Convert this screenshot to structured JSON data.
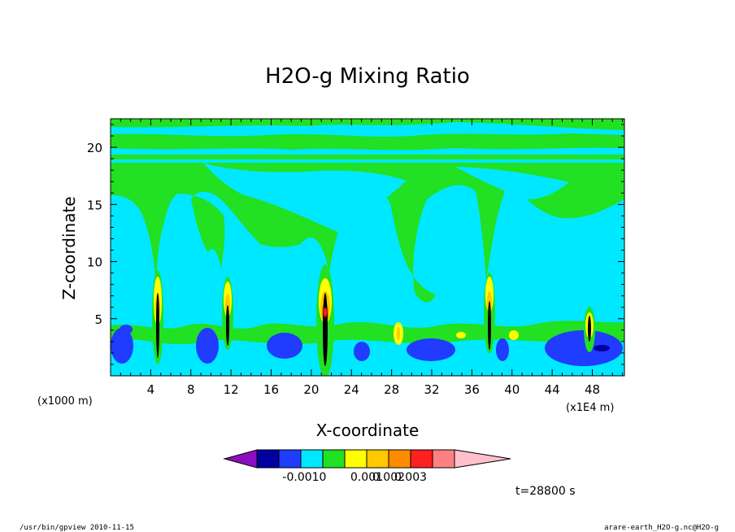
{
  "chart_data": {
    "type": "heatmap",
    "title": "H2O-g Mixing Ratio",
    "xlabel": "X-coordinate",
    "ylabel": "Z-coordinate",
    "x_unit_left": "(x1000 m)",
    "x_unit_right": "(x1E4 m)",
    "x_ticks": [
      "4",
      "8",
      "12",
      "16",
      "20",
      "24",
      "28",
      "32",
      "36",
      "40",
      "44",
      "48"
    ],
    "y_ticks": [
      "5",
      "10",
      "15",
      "20"
    ],
    "xlim": [
      0,
      51.2
    ],
    "ylim": [
      0,
      22.5
    ],
    "colorbar": {
      "levels": [
        "-0.001",
        "0",
        "0.001",
        "0.002",
        "0.003"
      ],
      "colors": [
        "#8c0fbf",
        "#0000a0",
        "#1f3cff",
        "#00e8ff",
        "#22e022",
        "#ffff00",
        "#ffc800",
        "#ff8c00",
        "#ff2020",
        "#ff8080",
        "#ffc0cb"
      ]
    },
    "time_label": "t=28800 s",
    "plumes_x": [
      4.8,
      11.5,
      21.3,
      37.5,
      47.5
    ],
    "plume_top_z": [
      9.0,
      9.5,
      9.0,
      9.5,
      6.5
    ],
    "background_value": "0"
  },
  "footer": {
    "left": "/usr/bin/gpview   2010-11-15",
    "right": "arare-earth_H2O-g.nc@H2O-g"
  }
}
